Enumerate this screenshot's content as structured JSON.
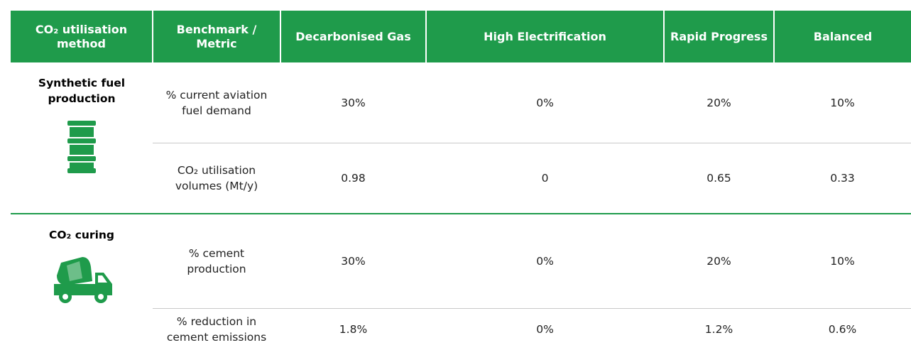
{
  "table": {
    "header": [
      "CO₂ utilisation method",
      "Benchmark / Metric",
      "Decarbonised Gas",
      "High Electrification",
      "Rapid Progress",
      "Balanced"
    ],
    "groups": [
      {
        "method": "Synthetic fuel production",
        "rows": [
          [
            "% current aviation fuel demand",
            "30%",
            "0%",
            "20%",
            "10%"
          ],
          [
            "CO₂ utilisation volumes (Mt/y)",
            "0.98",
            "0",
            "0.65",
            "0.33"
          ]
        ]
      },
      {
        "method": "CO₂ curing",
        "rows": [
          [
            "% cement production",
            "30%",
            "0%",
            "20%",
            "10%"
          ],
          [
            "% reduction in cement emissions",
            "1.8%",
            "0%",
            "1.2%",
            "0.6%"
          ]
        ]
      }
    ]
  }
}
